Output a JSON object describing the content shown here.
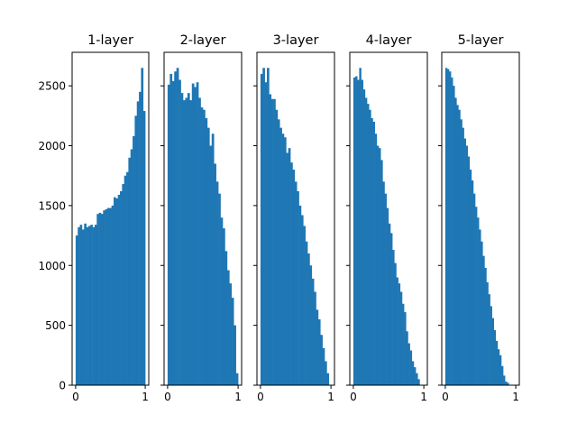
{
  "colors": {
    "bar": "#1f77b4",
    "axes": "#000000",
    "background": "#ffffff"
  },
  "chart_data": [
    {
      "type": "bar",
      "title": "1-layer",
      "xlim": [
        0,
        1
      ],
      "ylim": [
        0,
        2780
      ],
      "x_ticks": [
        0,
        1
      ],
      "y_ticks": [
        0,
        500,
        1000,
        1500,
        2000,
        2500
      ],
      "show_y_tick_labels": true,
      "bin_range": [
        0,
        1
      ],
      "values": [
        1250,
        1320,
        1340,
        1300,
        1350,
        1320,
        1330,
        1340,
        1320,
        1340,
        1430,
        1440,
        1430,
        1460,
        1470,
        1480,
        1480,
        1500,
        1570,
        1560,
        1590,
        1620,
        1680,
        1750,
        1780,
        1900,
        1970,
        2080,
        2250,
        2370,
        2450,
        2650,
        2290
      ]
    },
    {
      "type": "bar",
      "title": "2-layer",
      "xlim": [
        0,
        1
      ],
      "ylim": [
        0,
        2780
      ],
      "x_ticks": [
        0,
        1
      ],
      "y_ticks": [
        0,
        500,
        1000,
        1500,
        2000,
        2500
      ],
      "show_y_tick_labels": false,
      "bin_range": [
        0,
        1
      ],
      "values": [
        2510,
        2600,
        2540,
        2620,
        2650,
        2550,
        2440,
        2380,
        2400,
        2440,
        2380,
        2520,
        2490,
        2530,
        2400,
        2320,
        2300,
        2230,
        2150,
        2000,
        2100,
        1850,
        1700,
        1600,
        1400,
        1310,
        1120,
        960,
        850,
        730,
        500,
        100
      ]
    },
    {
      "type": "bar",
      "title": "3-layer",
      "xlim": [
        0,
        1
      ],
      "ylim": [
        0,
        2780
      ],
      "x_ticks": [
        0,
        1
      ],
      "y_ticks": [
        0,
        500,
        1000,
        1500,
        2000,
        2500
      ],
      "show_y_tick_labels": false,
      "bin_range": [
        0,
        0.97
      ],
      "values": [
        2600,
        2650,
        2530,
        2650,
        2430,
        2390,
        2390,
        2300,
        2220,
        2150,
        2100,
        2070,
        1940,
        1980,
        1860,
        1800,
        1700,
        1620,
        1500,
        1420,
        1330,
        1200,
        1100,
        1000,
        890,
        780,
        630,
        550,
        420,
        310,
        200,
        100
      ]
    },
    {
      "type": "bar",
      "title": "4-layer",
      "xlim": [
        0,
        1
      ],
      "ylim": [
        0,
        2780
      ],
      "x_ticks": [
        0,
        1
      ],
      "y_ticks": [
        0,
        500,
        1000,
        1500,
        2000,
        2500
      ],
      "show_y_tick_labels": false,
      "bin_range": [
        0,
        0.94
      ],
      "values": [
        2570,
        2580,
        2550,
        2650,
        2550,
        2470,
        2400,
        2350,
        2300,
        2230,
        2200,
        2100,
        2000,
        1980,
        1880,
        1700,
        1600,
        1480,
        1350,
        1270,
        1130,
        1020,
        900,
        850,
        780,
        680,
        610,
        450,
        350,
        290,
        200,
        150,
        100,
        50
      ]
    },
    {
      "type": "bar",
      "title": "5-layer",
      "xlim": [
        0,
        1
      ],
      "ylim": [
        0,
        2780
      ],
      "x_ticks": [
        0,
        1
      ],
      "y_ticks": [
        0,
        500,
        1000,
        1500,
        2000,
        2500
      ],
      "show_y_tick_labels": false,
      "bin_range": [
        0,
        0.9
      ],
      "values": [
        2650,
        2640,
        2620,
        2570,
        2500,
        2400,
        2340,
        2300,
        2220,
        2150,
        2060,
        2000,
        1910,
        1800,
        1710,
        1600,
        1490,
        1400,
        1300,
        1200,
        1080,
        980,
        860,
        760,
        660,
        560,
        460,
        370,
        300,
        250,
        160,
        80,
        30,
        20
      ]
    }
  ]
}
